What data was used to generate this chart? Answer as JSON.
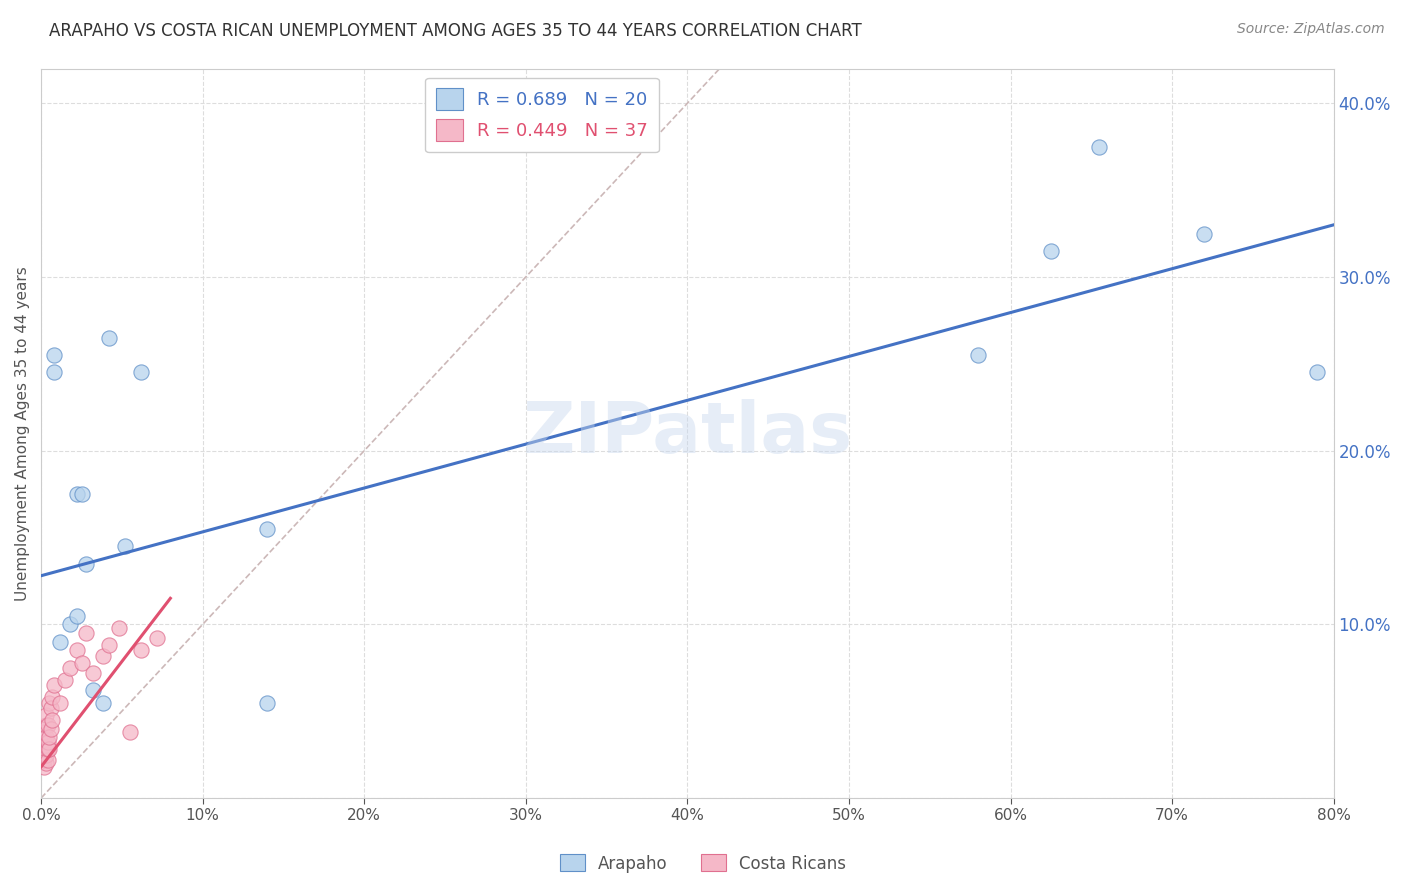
{
  "title": "ARAPAHO VS COSTA RICAN UNEMPLOYMENT AMONG AGES 35 TO 44 YEARS CORRELATION CHART",
  "source": "Source: ZipAtlas.com",
  "ylabel": "Unemployment Among Ages 35 to 44 years",
  "xlim": [
    0.0,
    0.8
  ],
  "ylim": [
    0.0,
    0.42
  ],
  "xticks": [
    0.0,
    0.1,
    0.2,
    0.3,
    0.4,
    0.5,
    0.6,
    0.7,
    0.8
  ],
  "yticks": [
    0.0,
    0.1,
    0.2,
    0.3,
    0.4
  ],
  "arapaho_color": "#b8d4ed",
  "arapaho_edge_color": "#6090c8",
  "arapaho_line_color": "#4472c4",
  "costarican_color": "#f5b8c8",
  "costarican_edge_color": "#e07090",
  "costarican_line_color": "#e05070",
  "legend_arapaho_r": "R = 0.689",
  "legend_arapaho_n": "N = 20",
  "legend_costarican_r": "R = 0.449",
  "legend_costarican_n": "N = 37",
  "watermark": "ZIPatlas",
  "arapaho_x": [
    0.008,
    0.008,
    0.012,
    0.018,
    0.022,
    0.022,
    0.025,
    0.028,
    0.032,
    0.038,
    0.042,
    0.052,
    0.062,
    0.14,
    0.14,
    0.58,
    0.625,
    0.655,
    0.72,
    0.79
  ],
  "arapaho_y": [
    0.255,
    0.245,
    0.09,
    0.1,
    0.105,
    0.175,
    0.175,
    0.135,
    0.062,
    0.055,
    0.265,
    0.145,
    0.245,
    0.155,
    0.055,
    0.255,
    0.315,
    0.375,
    0.325,
    0.245
  ],
  "costarican_x": [
    0.002,
    0.002,
    0.002,
    0.002,
    0.002,
    0.002,
    0.003,
    0.003,
    0.003,
    0.003,
    0.003,
    0.003,
    0.004,
    0.004,
    0.004,
    0.004,
    0.005,
    0.005,
    0.005,
    0.006,
    0.006,
    0.007,
    0.007,
    0.008,
    0.012,
    0.015,
    0.018,
    0.022,
    0.025,
    0.028,
    0.032,
    0.038,
    0.042,
    0.048,
    0.055,
    0.062,
    0.072
  ],
  "costarican_y": [
    0.018,
    0.022,
    0.025,
    0.028,
    0.032,
    0.038,
    0.02,
    0.025,
    0.028,
    0.035,
    0.042,
    0.048,
    0.022,
    0.028,
    0.032,
    0.042,
    0.028,
    0.035,
    0.055,
    0.04,
    0.052,
    0.045,
    0.058,
    0.065,
    0.055,
    0.068,
    0.075,
    0.085,
    0.078,
    0.095,
    0.072,
    0.082,
    0.088,
    0.098,
    0.038,
    0.085,
    0.092
  ],
  "arapaho_line_x0": 0.0,
  "arapaho_line_y0": 0.128,
  "arapaho_line_x1": 0.8,
  "arapaho_line_y1": 0.33,
  "costarican_line_x0": 0.0,
  "costarican_line_y0": 0.018,
  "costarican_line_x1": 0.08,
  "costarican_line_y1": 0.115,
  "diag_line_x0": 0.0,
  "diag_line_y0": 0.0,
  "diag_line_x1": 0.42,
  "diag_line_y1": 0.42,
  "background_color": "#ffffff",
  "grid_color": "#dddddd"
}
